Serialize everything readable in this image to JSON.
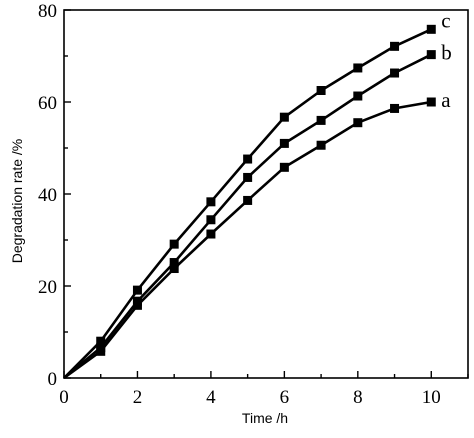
{
  "chart_data": {
    "type": "line",
    "title": "",
    "xlabel": "Time /h",
    "ylabel": "Degradation rate /%",
    "xlim": [
      0,
      11
    ],
    "ylim": [
      0,
      80
    ],
    "xticks": [
      0,
      2,
      4,
      6,
      8,
      10
    ],
    "yticks": [
      0,
      20,
      40,
      60,
      80
    ],
    "grid": false,
    "legend": "none",
    "x": [
      0,
      1,
      2,
      3,
      4,
      5,
      6,
      7,
      8,
      9,
      10
    ],
    "series": [
      {
        "name": "a",
        "values": [
          0,
          5.8,
          15.8,
          23.8,
          31.3,
          38.6,
          45.8,
          50.6,
          55.5,
          58.6,
          60.0
        ]
      },
      {
        "name": "b",
        "values": [
          0,
          6.6,
          16.7,
          25.1,
          34.4,
          43.6,
          51.0,
          56.0,
          61.3,
          66.3,
          70.3
        ]
      },
      {
        "name": "c",
        "values": [
          0,
          8.0,
          19.1,
          29.1,
          38.3,
          47.6,
          56.7,
          62.5,
          67.4,
          72.1,
          75.8
        ]
      }
    ],
    "series_color": "#000000"
  }
}
